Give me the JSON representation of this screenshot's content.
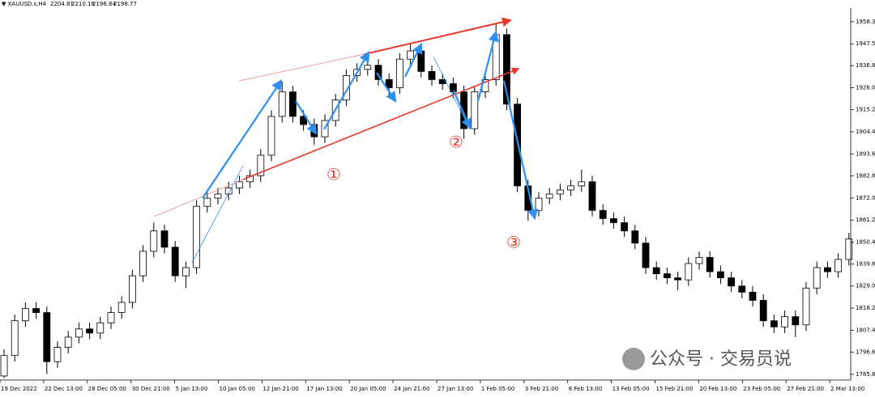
{
  "chart_data": {
    "type": "candlestick",
    "title": "XAUUSD.s,H4",
    "last_ohlc": [
      2204.81,
      2210.16,
      2196.84,
      2198.77
    ],
    "open": [
      1785,
      1795,
      1812,
      1818,
      1816,
      1792,
      1799,
      1804,
      1808,
      1806,
      1811,
      1816,
      1821,
      1834,
      1846,
      1856,
      1848,
      1834,
      1838,
      1868,
      1872,
      1874,
      1877,
      1880,
      1883,
      1893,
      1912,
      1924,
      1912,
      1908,
      1902,
      1910,
      1920,
      1932,
      1935,
      1937,
      1930,
      1926,
      1940,
      1944,
      1934,
      1930,
      1928,
      1924,
      1906,
      1924,
      1930,
      1952,
      1918,
      1878,
      1866,
      1872,
      1874,
      1876,
      1878,
      1880,
      1866,
      1862,
      1860,
      1856,
      1850,
      1838,
      1835,
      1833,
      1832,
      1840,
      1843,
      1836,
      1833,
      1829,
      1826,
      1822,
      1812,
      1809,
      1814,
      1810,
      1828,
      1838,
      1836,
      1842
    ],
    "high": [
      1798,
      1815,
      1821,
      1821,
      1819,
      1802,
      1807,
      1811,
      1811,
      1814,
      1819,
      1824,
      1837,
      1849,
      1860,
      1859,
      1851,
      1841,
      1871,
      1875,
      1877,
      1880,
      1883,
      1886,
      1896,
      1915,
      1929,
      1927,
      1915,
      1911,
      1913,
      1923,
      1935,
      1938,
      1941,
      1940,
      1933,
      1943,
      1948,
      1947,
      1937,
      1933,
      1931,
      1927,
      1927,
      1933,
      1957,
      1955,
      1921,
      1881,
      1875,
      1877,
      1879,
      1881,
      1886,
      1883,
      1869,
      1865,
      1863,
      1859,
      1853,
      1841,
      1838,
      1836,
      1843,
      1846,
      1846,
      1839,
      1836,
      1832,
      1829,
      1825,
      1815,
      1817,
      1817,
      1831,
      1841,
      1841,
      1845,
      1855
    ],
    "low": [
      1784,
      1792,
      1809,
      1813,
      1786,
      1789,
      1796,
      1801,
      1803,
      1803,
      1808,
      1813,
      1818,
      1831,
      1843,
      1845,
      1831,
      1828,
      1835,
      1865,
      1869,
      1871,
      1874,
      1877,
      1880,
      1890,
      1909,
      1909,
      1905,
      1898,
      1899,
      1907,
      1917,
      1929,
      1932,
      1927,
      1922,
      1923,
      1937,
      1931,
      1927,
      1925,
      1921,
      1901,
      1903,
      1921,
      1927,
      1915,
      1875,
      1861,
      1863,
      1869,
      1871,
      1873,
      1875,
      1863,
      1859,
      1857,
      1853,
      1847,
      1835,
      1832,
      1830,
      1827,
      1829,
      1837,
      1833,
      1830,
      1826,
      1823,
      1819,
      1809,
      1806,
      1806,
      1804,
      1807,
      1825,
      1833,
      1833,
      1839
    ],
    "close": [
      1795,
      1812,
      1818,
      1816,
      1792,
      1799,
      1804,
      1808,
      1806,
      1811,
      1816,
      1821,
      1834,
      1846,
      1856,
      1848,
      1834,
      1838,
      1868,
      1872,
      1874,
      1877,
      1880,
      1883,
      1893,
      1912,
      1924,
      1912,
      1908,
      1902,
      1910,
      1920,
      1932,
      1935,
      1937,
      1930,
      1926,
      1940,
      1944,
      1934,
      1930,
      1928,
      1924,
      1906,
      1924,
      1930,
      1952,
      1918,
      1878,
      1866,
      1872,
      1874,
      1876,
      1878,
      1880,
      1866,
      1862,
      1860,
      1856,
      1850,
      1838,
      1835,
      1833,
      1832,
      1840,
      1843,
      1836,
      1833,
      1829,
      1826,
      1822,
      1812,
      1809,
      1814,
      1810,
      1828,
      1838,
      1836,
      1842,
      1852
    ],
    "bull_color": "#ffffff",
    "bear_color": "#000000",
    "x_labels": [
      "19 Dec 2022",
      "22 Dec 13:00",
      "28 Dec 05:00",
      "30 Dec 21:00",
      "5 Jan 13:00",
      "10 Jan 05:00",
      "12 Jan 21:00",
      "17 Jan 13:00",
      "20 Jan 05:00",
      "24 Jan 21:00",
      "27 Jan 13:00",
      "1 Feb 05:00",
      "3 Feb 21:00",
      "8 Feb 13:00",
      "13 Feb 05:00",
      "15 Feb 21:00",
      "20 Feb 13:00",
      "23 Feb 05:00",
      "27 Feb 21:00",
      "2 Mar 13:00"
    ],
    "ylim": [
      1783.8,
      1964.2
    ],
    "yticks": [
      {
        "value": 1785.8,
        "label": "1785.80"
      },
      {
        "value": 1796.6,
        "label": "1796.60"
      },
      {
        "value": 1807.4,
        "label": "1807.40"
      },
      {
        "value": 1818.2,
        "label": "1818.20"
      },
      {
        "value": 1829,
        "label": "1829.00"
      },
      {
        "value": 1839.8,
        "label": "1839.80"
      },
      1850.45,
      1861.25,
      1872.05,
      1882.85,
      1893.65,
      1904.45,
      1915.25,
      1926.05,
      1936.85,
      {
        "value": 1947.5,
        "label": "1947.50"
      },
      {
        "value": 1958.3,
        "label": "1958.30"
      }
    ],
    "grid": false,
    "annotations": [
      "①",
      "②",
      "③"
    ],
    "watermark": "公众号 · 交易员说"
  }
}
